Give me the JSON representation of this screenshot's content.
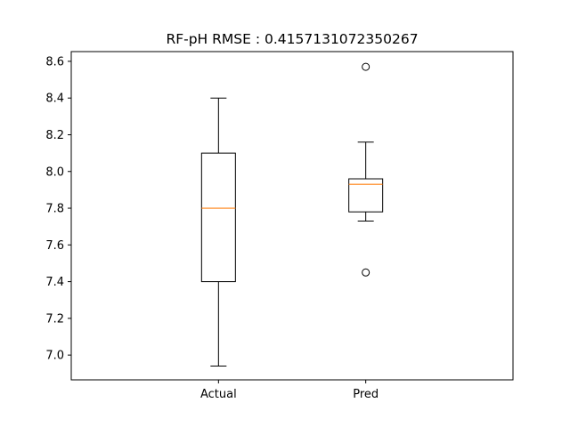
{
  "chart_data": {
    "type": "box",
    "title": "RF-pH RMSE : 0.4157131072350267",
    "xlabel": "",
    "ylabel": "",
    "categories": [
      "Actual",
      "Pred"
    ],
    "ylim": [
      6.865,
      8.653
    ],
    "yticks": [
      "7.0",
      "7.2",
      "7.4",
      "7.6",
      "7.8",
      "8.0",
      "8.2",
      "8.4",
      "8.6"
    ],
    "grid": false,
    "boxes": [
      {
        "name": "Actual",
        "whisker_low": 6.94,
        "q1": 7.4,
        "median": 7.8,
        "q3": 8.1,
        "whisker_high": 8.4,
        "outliers": []
      },
      {
        "name": "Pred",
        "whisker_low": 7.73,
        "q1": 7.78,
        "median": 7.93,
        "q3": 7.96,
        "whisker_high": 8.16,
        "outliers": [
          7.45,
          8.57
        ]
      }
    ],
    "colors": {
      "box": "#000000",
      "median": "#ff7f0e",
      "outlier": "#000000"
    }
  }
}
